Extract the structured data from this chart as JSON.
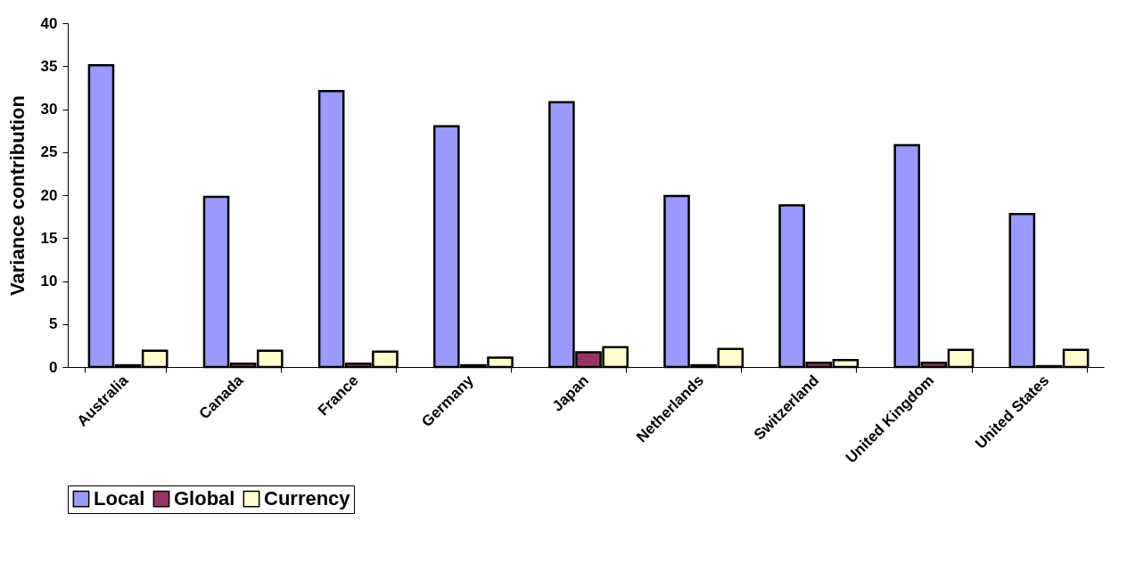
{
  "chart_data": {
    "type": "bar",
    "ylabel": "Variance contribution",
    "categories": [
      "Australia",
      "Canada",
      "France",
      "Germany",
      "Japan",
      "Netherlands",
      "Switzerland",
      "United Kingdom",
      "United States"
    ],
    "series": [
      {
        "name": "Local",
        "color": "#9999ff",
        "values": [
          35.1,
          19.8,
          32.1,
          28.0,
          30.8,
          19.9,
          18.8,
          25.8,
          17.8
        ]
      },
      {
        "name": "Global",
        "color": "#993366",
        "values": [
          0.2,
          0.4,
          0.4,
          0.2,
          1.7,
          0.2,
          0.5,
          0.5,
          0.1
        ]
      },
      {
        "name": "Currency",
        "color": "#ffffcc",
        "values": [
          1.9,
          1.9,
          1.8,
          1.1,
          2.3,
          2.1,
          0.8,
          2.0,
          2.0
        ]
      }
    ],
    "ylim": [
      0,
      40
    ],
    "yticks": [
      0,
      5,
      10,
      15,
      20,
      25,
      30,
      35,
      40
    ],
    "grid": false,
    "legend": "bottom"
  }
}
